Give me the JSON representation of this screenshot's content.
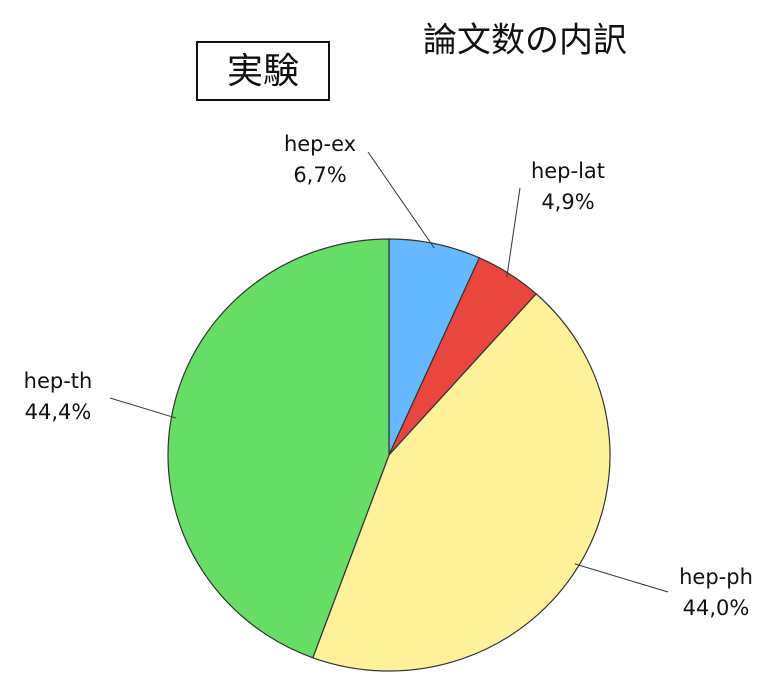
{
  "chart_data": {
    "type": "pie",
    "title": "論文数の内訳",
    "annotation": "実験",
    "categories": [
      "hep-ex",
      "hep-lat",
      "hep-ph",
      "hep-th"
    ],
    "values": [
      6.7,
      4.9,
      44.0,
      44.4
    ],
    "value_labels": [
      "6,7%",
      "4,9%",
      "44,0%",
      "44,4%"
    ],
    "colors": [
      "#66b8ff",
      "#e8463f",
      "#fff09a",
      "#66dd66"
    ]
  }
}
